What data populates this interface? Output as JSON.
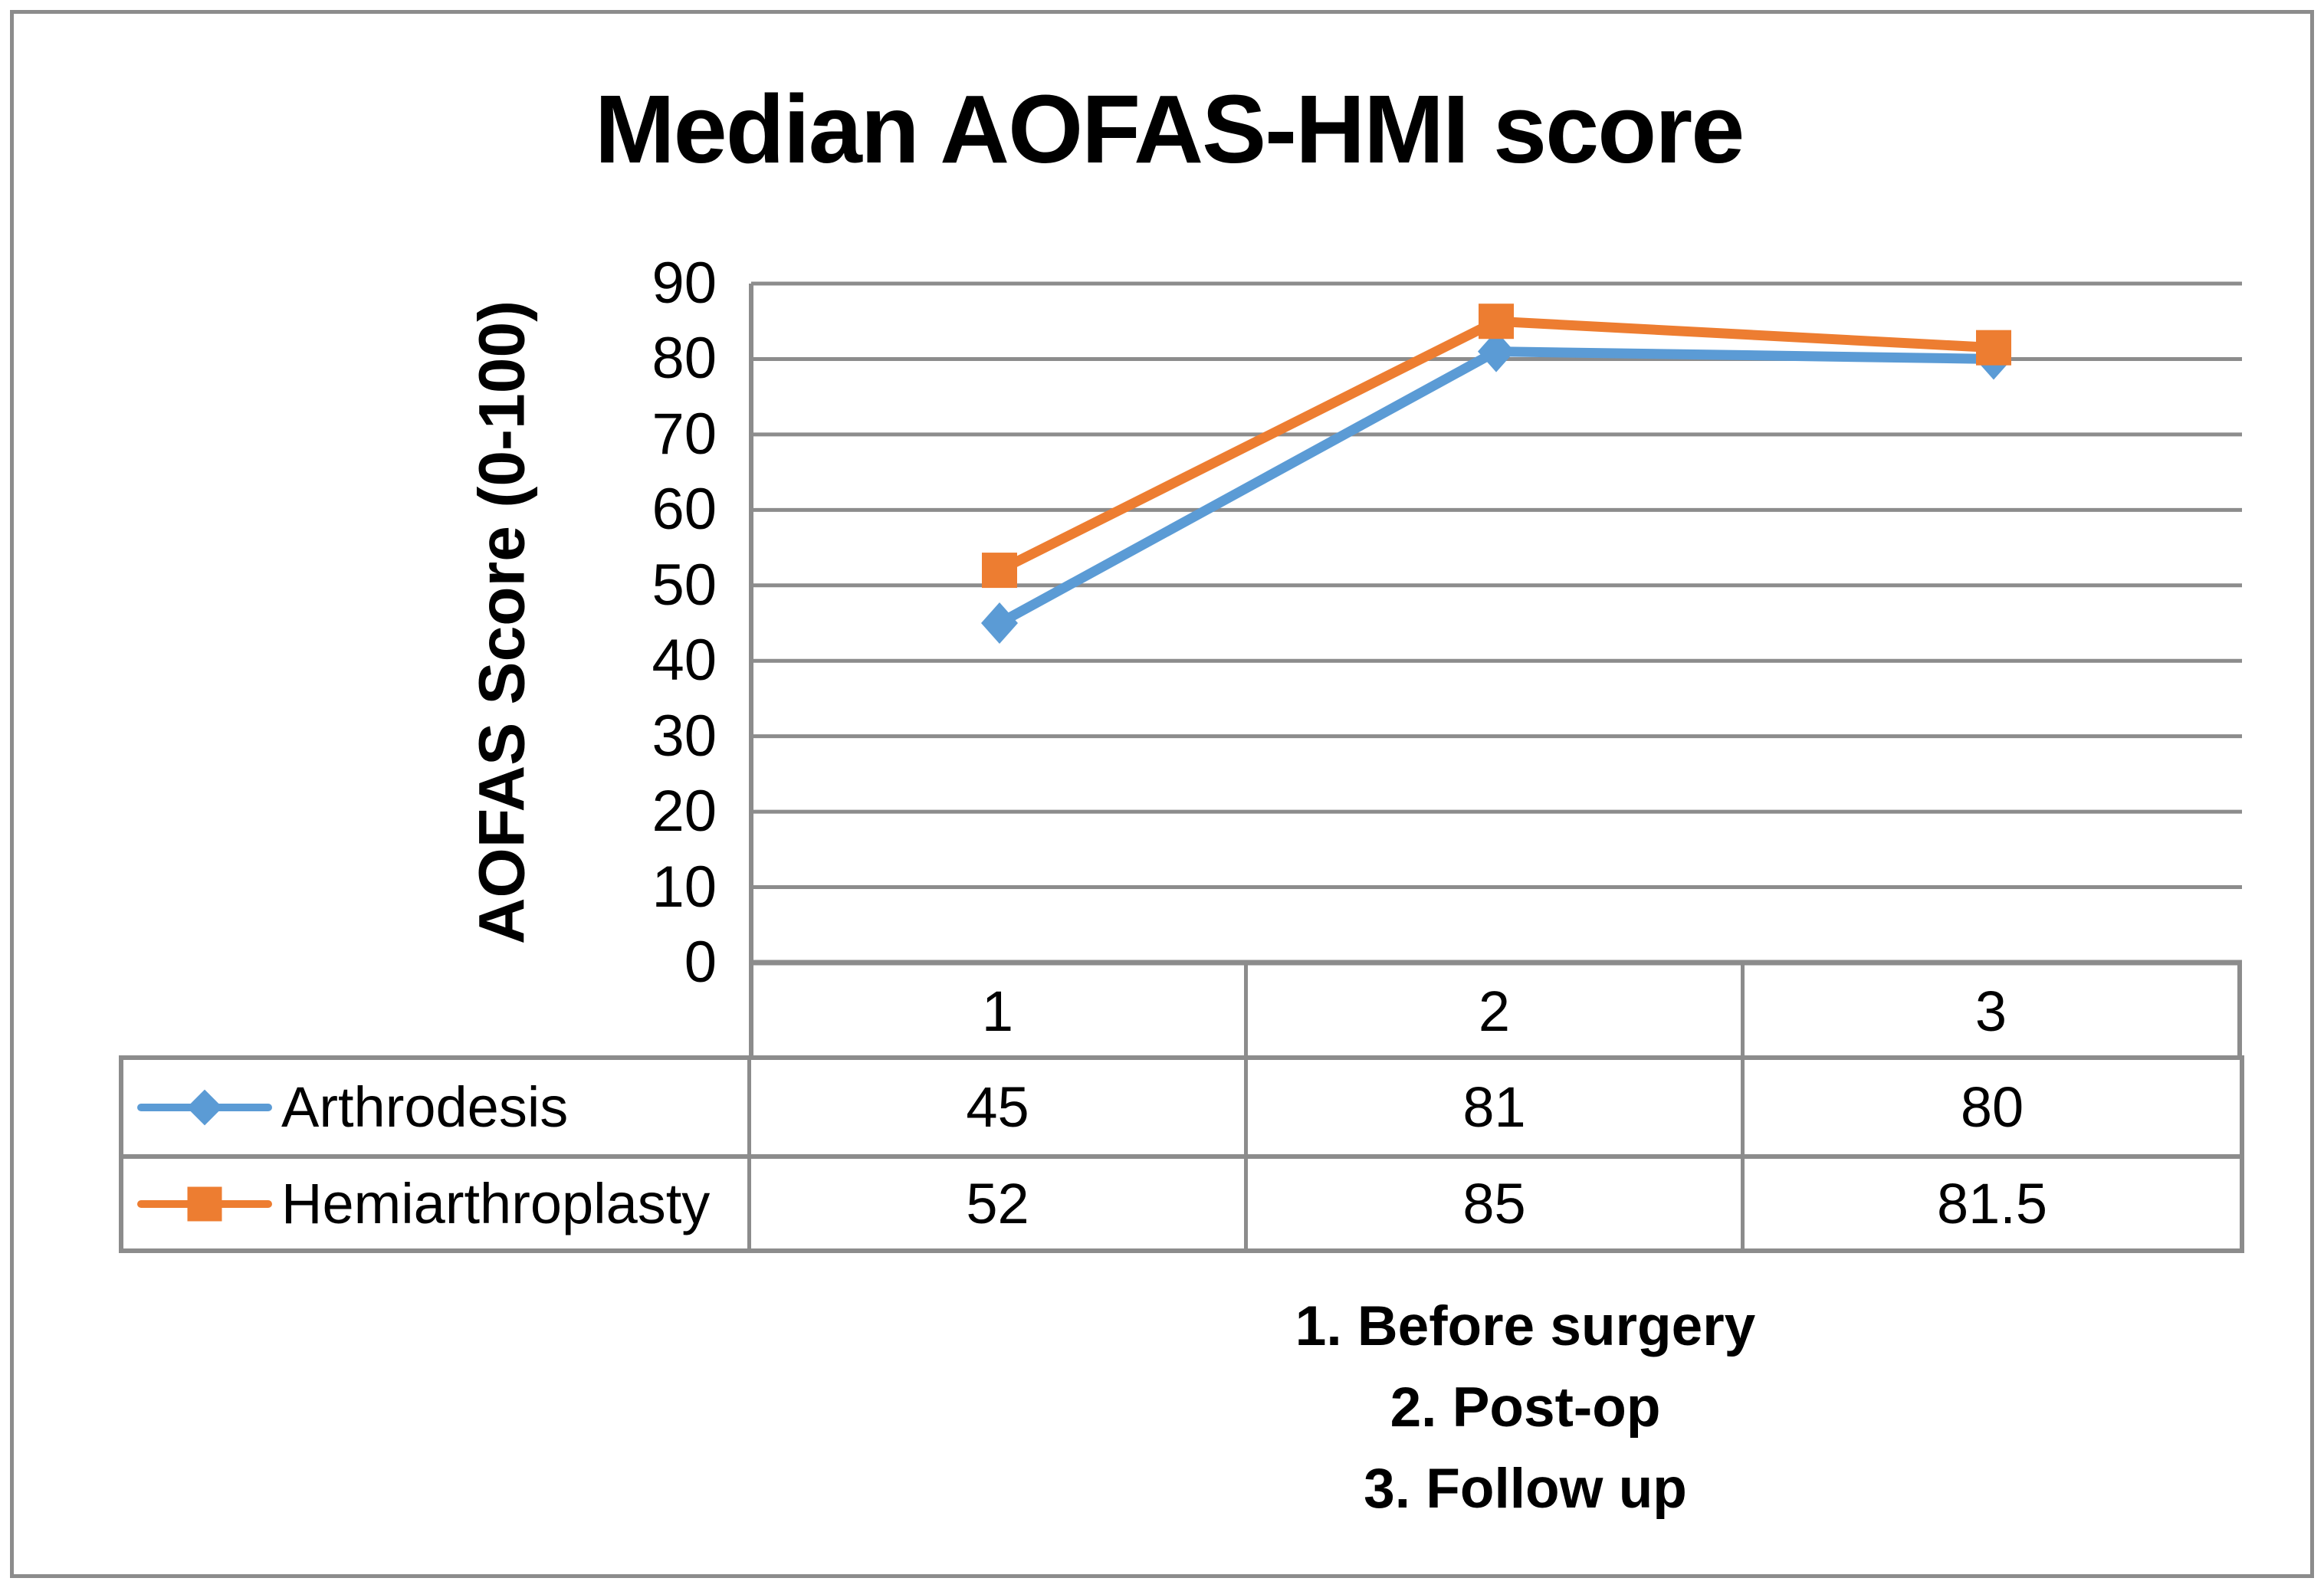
{
  "title": "Median AOFAS-HMI score",
  "chart_data": {
    "type": "line",
    "title": "Median AOFAS-HMI score",
    "ylabel": "AOFAS Score (0-100)",
    "xlabel": "",
    "categories": [
      "1",
      "2",
      "3"
    ],
    "y_ticks": [
      90,
      80,
      70,
      60,
      50,
      40,
      30,
      20,
      10,
      0
    ],
    "ylim": [
      0,
      90
    ],
    "grid": "horizontal",
    "gridline_color": "#8C8C8C",
    "legend_position": "table-left",
    "series": [
      {
        "name": "Arthrodesis",
        "values": [
          45,
          81,
          80
        ],
        "color": "#5B9BD5",
        "marker": "diamond"
      },
      {
        "name": "Hemiarthroplasty",
        "values": [
          52,
          85,
          81.5
        ],
        "color": "#ED7D31",
        "marker": "square"
      }
    ]
  },
  "table": {
    "column_headers": [
      "1",
      "2",
      "3"
    ],
    "rows": [
      {
        "label": "Arthrodesis",
        "values": [
          "45",
          "81",
          "80"
        ]
      },
      {
        "label": "Hemiarthroplasty",
        "values": [
          "52",
          "85",
          "81.5"
        ]
      }
    ]
  },
  "footnotes": [
    "1. Before surgery",
    "2. Post-op",
    "3. Follow up"
  ],
  "colors": {
    "series1": "#5B9BD5",
    "series2": "#ED7D31",
    "grid": "#8C8C8C",
    "text": "#000000",
    "background": "#FFFFFF"
  }
}
